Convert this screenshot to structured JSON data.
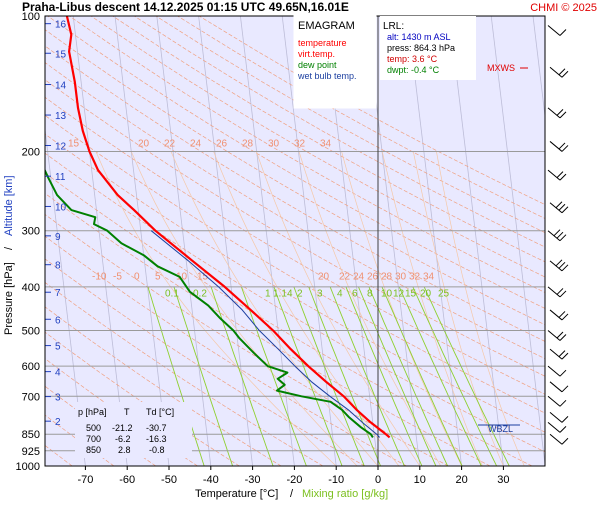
{
  "header": {
    "title": "Praha-Libus  descent  14.12.2025 01:15 UTC  49.65N,16.01E",
    "copyright": "CHMI © 2025"
  },
  "colors": {
    "plot_bg": "#e9e9ff",
    "temperature": "#ff0000",
    "virt_temp": "#ff0000",
    "dew_point": "#008000",
    "wet_bulb": "#1c3fa0",
    "dry_adiabat": "#f0a080",
    "moist_adiabat": "#f5c8a8",
    "mixing_ratio": "#8fd030",
    "isotherm": "#bdbdd8",
    "altitude": "#2040c0"
  },
  "legend": {
    "title": "EMAGRAM",
    "items": [
      {
        "label": "temperature",
        "color": "#ff0000"
      },
      {
        "label": "virt.temp.",
        "color": "#ff0000"
      },
      {
        "label": "dew point",
        "color": "#008000"
      },
      {
        "label": "wet bulb temp.",
        "color": "#1c3fa0"
      }
    ]
  },
  "lrl": {
    "title": "LRL:",
    "alt": "alt: 1430 m ASL",
    "press": "press: 864.3 hPa",
    "temp": "temp: 3.6 °C",
    "dwpt": "dwpt: -0.4 °C"
  },
  "markers": {
    "mxws": "MXWS",
    "wbzl": "WBZL"
  },
  "table": {
    "headers": [
      "p [hPa]",
      "T",
      "Td [°C]"
    ],
    "rows": [
      [
        "500",
        "-21.2",
        "-30.7"
      ],
      [
        "700",
        "-6.2",
        "-16.3"
      ],
      [
        "850",
        "2.8",
        "-0.8"
      ]
    ]
  },
  "chart_data": {
    "type": "line",
    "x_axis": {
      "label": "Temperature [°C]",
      "range": [
        -80,
        40
      ],
      "ticks": [
        -70,
        -60,
        -50,
        -40,
        -30,
        -20,
        -10,
        0,
        10,
        20,
        30
      ]
    },
    "x_axis_secondary_label": "Mixing ratio [g/kg]",
    "y_axis": {
      "label_pressure": "Pressure [hPa]",
      "label_altitude": "Altitude [km]",
      "scale": "log",
      "range": [
        1000,
        100
      ],
      "ticks": [
        100,
        200,
        300,
        400,
        500,
        600,
        700,
        850,
        925,
        1000
      ]
    },
    "altitude_ticks_km": [
      {
        "km": "2",
        "p": 795
      },
      {
        "km": "3",
        "p": 701
      },
      {
        "km": "4",
        "p": 617
      },
      {
        "km": "5",
        "p": 540
      },
      {
        "km": "6",
        "p": 472
      },
      {
        "km": "7",
        "p": 411
      },
      {
        "km": "8",
        "p": 357
      },
      {
        "km": "9",
        "p": 308
      },
      {
        "km": "10",
        "p": 265
      },
      {
        "km": "11",
        "p": 227
      },
      {
        "km": "12",
        "p": 194
      },
      {
        "km": "13",
        "p": 166
      },
      {
        "km": "14",
        "p": 142
      },
      {
        "km": "15",
        "p": 121
      },
      {
        "km": "16",
        "p": 104
      }
    ],
    "dry_adiabat_labels": [
      "-10",
      "-5",
      "0",
      "5",
      "10",
      "15",
      "20",
      "22",
      "24",
      "26",
      "28",
      "30",
      "32",
      "34"
    ],
    "upper_adiabat_labels": [
      "15",
      "20",
      "22",
      "24",
      "26",
      "28",
      "30",
      "32",
      "34"
    ],
    "mixing_ratio_labels": [
      "0.1",
      "0.2",
      "1",
      "1.1",
      "4",
      "2",
      "3",
      "4",
      "6",
      "8",
      "10",
      "12",
      "15",
      "20",
      "25"
    ],
    "series": [
      {
        "name": "temperature",
        "points": [
          {
            "p": 864,
            "t": 3.6
          },
          {
            "p": 850,
            "t": 2.8
          },
          {
            "p": 800,
            "t": -0.5
          },
          {
            "p": 750,
            "t": -3.5
          },
          {
            "p": 700,
            "t": -6.2
          },
          {
            "p": 650,
            "t": -10.0
          },
          {
            "p": 600,
            "t": -13.8
          },
          {
            "p": 550,
            "t": -17.5
          },
          {
            "p": 500,
            "t": -21.2
          },
          {
            "p": 450,
            "t": -26.0
          },
          {
            "p": 400,
            "t": -31.5
          },
          {
            "p": 350,
            "t": -38.5
          },
          {
            "p": 300,
            "t": -46.5
          },
          {
            "p": 270,
            "t": -51.0
          },
          {
            "p": 250,
            "t": -54.5
          },
          {
            "p": 220,
            "t": -58.5
          },
          {
            "p": 200,
            "t": -60.0
          },
          {
            "p": 180,
            "t": -61.0
          },
          {
            "p": 160,
            "t": -61.5
          },
          {
            "p": 140,
            "t": -61.5
          },
          {
            "p": 120,
            "t": -62.0
          },
          {
            "p": 110,
            "t": -61.0
          },
          {
            "p": 100,
            "t": -61.5
          }
        ]
      },
      {
        "name": "dew point",
        "points": [
          {
            "p": 864,
            "t": -0.4
          },
          {
            "p": 850,
            "t": -0.8
          },
          {
            "p": 820,
            "t": -3.0
          },
          {
            "p": 780,
            "t": -5.5
          },
          {
            "p": 750,
            "t": -7.0
          },
          {
            "p": 720,
            "t": -9.5
          },
          {
            "p": 700,
            "t": -16.3
          },
          {
            "p": 680,
            "t": -22.0
          },
          {
            "p": 660,
            "t": -20.0
          },
          {
            "p": 640,
            "t": -21.5
          },
          {
            "p": 620,
            "t": -19.0
          },
          {
            "p": 600,
            "t": -23.5
          },
          {
            "p": 560,
            "t": -26.5
          },
          {
            "p": 520,
            "t": -29.5
          },
          {
            "p": 500,
            "t": -30.7
          },
          {
            "p": 470,
            "t": -33.5
          },
          {
            "p": 440,
            "t": -36.0
          },
          {
            "p": 410,
            "t": -40.0
          },
          {
            "p": 380,
            "t": -42.0
          },
          {
            "p": 360,
            "t": -47.0
          },
          {
            "p": 340,
            "t": -50.0
          },
          {
            "p": 320,
            "t": -55.0
          },
          {
            "p": 300,
            "t": -58.0
          },
          {
            "p": 290,
            "t": -61.0
          },
          {
            "p": 280,
            "t": -60.5
          },
          {
            "p": 270,
            "t": -66.0
          },
          {
            "p": 250,
            "t": -69.0
          },
          {
            "p": 230,
            "t": -70.5
          },
          {
            "p": 210,
            "t": -72.0
          },
          {
            "p": 200,
            "t": -75.0
          }
        ]
      },
      {
        "name": "wet bulb temp.",
        "points": [
          {
            "p": 864,
            "t": 1.2
          },
          {
            "p": 850,
            "t": 0.6
          },
          {
            "p": 800,
            "t": -2.5
          },
          {
            "p": 750,
            "t": -5.5
          },
          {
            "p": 700,
            "t": -9.5
          },
          {
            "p": 650,
            "t": -13.5
          },
          {
            "p": 600,
            "t": -17.0
          },
          {
            "p": 550,
            "t": -20.5
          },
          {
            "p": 500,
            "t": -24.5
          },
          {
            "p": 450,
            "t": -28.0
          },
          {
            "p": 400,
            "t": -33.0
          },
          {
            "p": 350,
            "t": -39.5
          },
          {
            "p": 300,
            "t": -47.5
          }
        ]
      }
    ],
    "wind_barb_levels": [
      105,
      130,
      160,
      190,
      220,
      260,
      300,
      350,
      400,
      450,
      500,
      550,
      600,
      650,
      700,
      760,
      800,
      850
    ]
  }
}
